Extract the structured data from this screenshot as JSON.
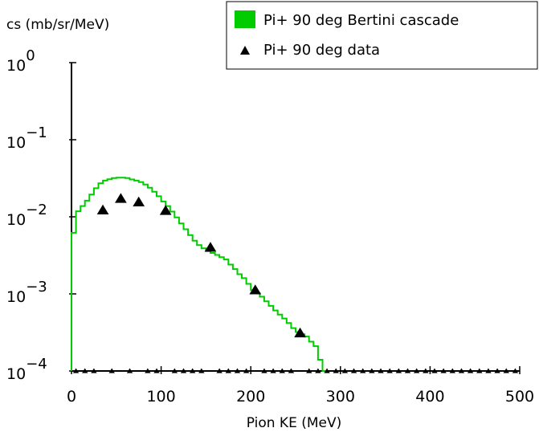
{
  "chart_data": {
    "type": "line",
    "xlabel": "Pion KE (MeV)",
    "ylabel": "cs (mb/sr/MeV)",
    "xlim": [
      0,
      500
    ],
    "ylim": [
      0.0001,
      1
    ],
    "yscale": "log",
    "x_ticks": [
      "0",
      "100",
      "200",
      "300",
      "400",
      "500"
    ],
    "y_ticks": [
      {
        "base": "10",
        "exp": "0"
      },
      {
        "base": "10",
        "exp": "−1"
      },
      {
        "base": "10",
        "exp": "−2"
      },
      {
        "base": "10",
        "exp": "−3"
      },
      {
        "base": "10",
        "exp": "−4"
      }
    ],
    "legend_position": "top-right",
    "colors": {
      "simulation": "#00cc00",
      "data": "#000000"
    },
    "series": [
      {
        "name": "Pi+ 90 deg Bertini cascade",
        "style": "step",
        "x": [
          0,
          5,
          10,
          15,
          20,
          25,
          30,
          35,
          40,
          45,
          50,
          55,
          60,
          65,
          70,
          75,
          80,
          85,
          90,
          95,
          100,
          105,
          110,
          115,
          120,
          125,
          130,
          135,
          140,
          145,
          150,
          155,
          160,
          165,
          170,
          175,
          180,
          185,
          190,
          195,
          200,
          205,
          210,
          215,
          220,
          225,
          230,
          235,
          240,
          245,
          250,
          255,
          260,
          265,
          270,
          275,
          280
        ],
        "y": [
          0.0062,
          0.0118,
          0.0138,
          0.0162,
          0.0195,
          0.0235,
          0.0272,
          0.0295,
          0.0307,
          0.0318,
          0.0322,
          0.0322,
          0.0318,
          0.0305,
          0.0295,
          0.0282,
          0.0263,
          0.0238,
          0.0212,
          0.0185,
          0.0158,
          0.0138,
          0.0117,
          0.0098,
          0.0082,
          0.0069,
          0.0058,
          0.0049,
          0.0043,
          0.0039,
          0.0036,
          0.0034,
          0.0032,
          0.003,
          0.0028,
          0.0024,
          0.0021,
          0.0018,
          0.0016,
          0.00135,
          0.00112,
          0.00102,
          0.00092,
          0.0008,
          0.0007,
          0.00061,
          0.00054,
          0.00048,
          0.00042,
          0.00036,
          0.00032,
          0.0003,
          0.00028,
          0.00024,
          0.00021,
          0.00014,
          0.0001
        ]
      },
      {
        "name": "Pi+ 90 deg data",
        "style": "marker-triangle",
        "x": [
          35,
          55,
          75,
          105,
          155,
          205,
          255
        ],
        "y": [
          0.0122,
          0.0172,
          0.0155,
          0.012,
          0.004,
          0.00112,
          0.00031
        ]
      },
      {
        "style": "marker-triangle",
        "floor": true,
        "x": [
          5,
          15,
          25,
          45,
          65,
          85,
          95,
          115,
          125,
          135,
          145,
          165,
          175,
          185,
          195,
          215,
          225,
          235,
          245,
          265,
          275,
          285,
          295,
          305,
          315,
          325,
          335,
          345,
          355,
          365,
          375,
          385,
          395,
          405,
          415,
          425,
          435,
          445,
          455,
          465,
          475,
          485,
          495
        ],
        "y": [
          0.0001,
          0.0001,
          0.0001,
          0.0001,
          0.0001,
          0.0001,
          0.0001,
          0.0001,
          0.0001,
          0.0001,
          0.0001,
          0.0001,
          0.0001,
          0.0001,
          0.0001,
          0.0001,
          0.0001,
          0.0001,
          0.0001,
          0.0001,
          0.0001,
          0.0001,
          0.0001,
          0.0001,
          0.0001,
          0.0001,
          0.0001,
          0.0001,
          0.0001,
          0.0001,
          0.0001,
          0.0001,
          0.0001,
          0.0001,
          0.0001,
          0.0001,
          0.0001,
          0.0001,
          0.0001,
          0.0001,
          0.0001,
          0.0001,
          0.0001
        ]
      }
    ]
  }
}
